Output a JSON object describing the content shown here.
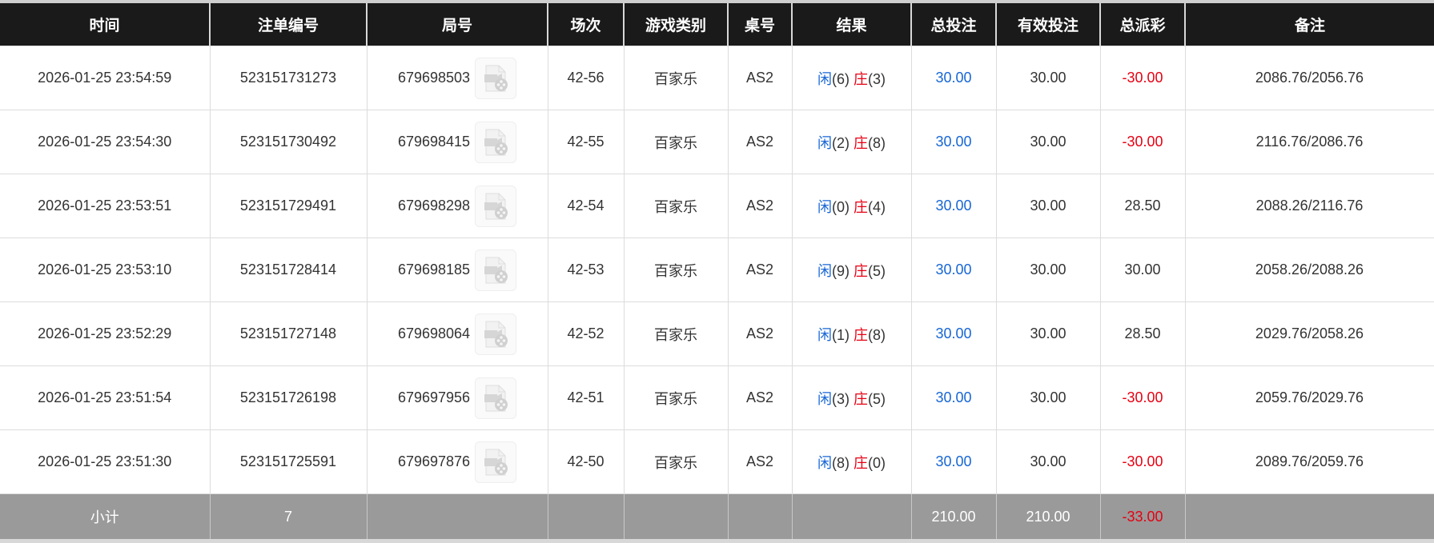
{
  "headers": [
    "时间",
    "注单编号",
    "局号",
    "场次",
    "游戏类别",
    "桌号",
    "结果",
    "总投注",
    "有效投注",
    "总派彩",
    "备注"
  ],
  "rows": [
    {
      "time": "2026-01-25 23:54:59",
      "bet_id": "523151731273",
      "round": "679698503",
      "session": "42-56",
      "game": "百家乐",
      "table": "AS2",
      "player": "闲",
      "player_pts": "(6)",
      "banker": "庄",
      "banker_pts": "(3)",
      "total_bet": "30.00",
      "valid_bet": "30.00",
      "payout": "-30.00",
      "payout_neg": true,
      "note": "2086.76/2056.76"
    },
    {
      "time": "2026-01-25 23:54:30",
      "bet_id": "523151730492",
      "round": "679698415",
      "session": "42-55",
      "game": "百家乐",
      "table": "AS2",
      "player": "闲",
      "player_pts": "(2)",
      "banker": "庄",
      "banker_pts": "(8)",
      "total_bet": "30.00",
      "valid_bet": "30.00",
      "payout": "-30.00",
      "payout_neg": true,
      "note": "2116.76/2086.76"
    },
    {
      "time": "2026-01-25 23:53:51",
      "bet_id": "523151729491",
      "round": "679698298",
      "session": "42-54",
      "game": "百家乐",
      "table": "AS2",
      "player": "闲",
      "player_pts": "(0)",
      "banker": "庄",
      "banker_pts": "(4)",
      "total_bet": "30.00",
      "valid_bet": "30.00",
      "payout": "28.50",
      "payout_neg": false,
      "note": "2088.26/2116.76"
    },
    {
      "time": "2026-01-25 23:53:10",
      "bet_id": "523151728414",
      "round": "679698185",
      "session": "42-53",
      "game": "百家乐",
      "table": "AS2",
      "player": "闲",
      "player_pts": "(9)",
      "banker": "庄",
      "banker_pts": "(5)",
      "total_bet": "30.00",
      "valid_bet": "30.00",
      "payout": "30.00",
      "payout_neg": false,
      "note": "2058.26/2088.26"
    },
    {
      "time": "2026-01-25 23:52:29",
      "bet_id": "523151727148",
      "round": "679698064",
      "session": "42-52",
      "game": "百家乐",
      "table": "AS2",
      "player": "闲",
      "player_pts": "(1)",
      "banker": "庄",
      "banker_pts": "(8)",
      "total_bet": "30.00",
      "valid_bet": "30.00",
      "payout": "28.50",
      "payout_neg": false,
      "note": "2029.76/2058.26"
    },
    {
      "time": "2026-01-25 23:51:54",
      "bet_id": "523151726198",
      "round": "679697956",
      "session": "42-51",
      "game": "百家乐",
      "table": "AS2",
      "player": "闲",
      "player_pts": "(3)",
      "banker": "庄",
      "banker_pts": "(5)",
      "total_bet": "30.00",
      "valid_bet": "30.00",
      "payout": "-30.00",
      "payout_neg": true,
      "note": "2059.76/2029.76"
    },
    {
      "time": "2026-01-25 23:51:30",
      "bet_id": "523151725591",
      "round": "679697876",
      "session": "42-50",
      "game": "百家乐",
      "table": "AS2",
      "player": "闲",
      "player_pts": "(8)",
      "banker": "庄",
      "banker_pts": "(0)",
      "total_bet": "30.00",
      "valid_bet": "30.00",
      "payout": "-30.00",
      "payout_neg": true,
      "note": "2089.76/2059.76"
    }
  ],
  "subtotal": {
    "label": "小计",
    "count": "7",
    "total_bet": "210.00",
    "valid_bet": "210.00",
    "payout": "-33.00"
  },
  "icons": {
    "replay": "video-file-icon"
  },
  "colors": {
    "header_bg": "#1a1a1a",
    "blue": "#1766d6",
    "red": "#e60012",
    "subtotal_bg": "#9a9a9a"
  }
}
